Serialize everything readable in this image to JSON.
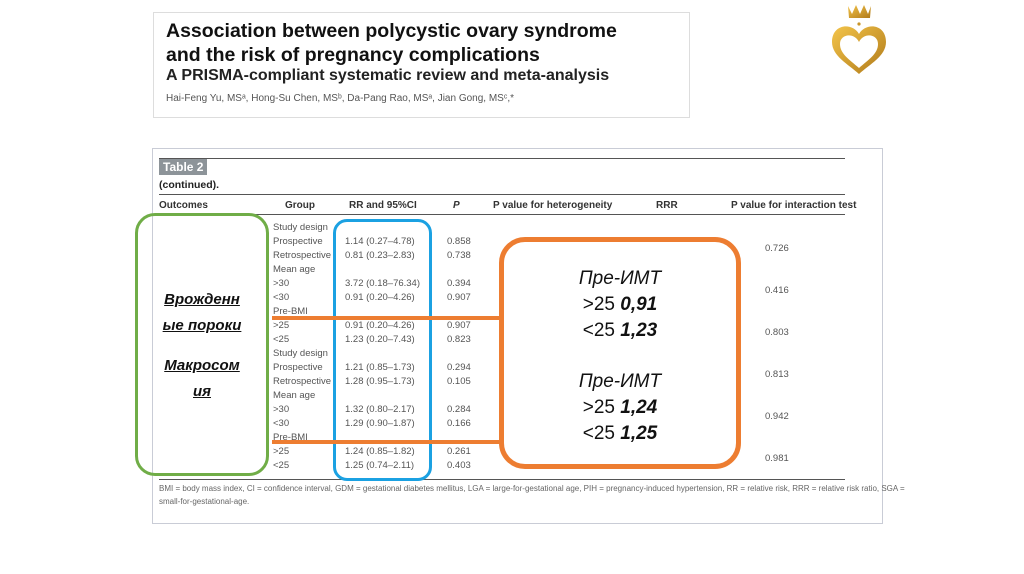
{
  "header": {
    "title_line1": "Association between polycystic ovary syndrome",
    "title_line2": "and the risk of pregnancy complications",
    "subtitle": "A PRISMA-compliant systematic review and meta-analysis",
    "authors": "Hai-Feng Yu, MSᵃ, Hong-Su Chen, MSᵇ, Da-Pang Rao, MSᵃ, Jian Gong, MSᶜ,*"
  },
  "logo": {
    "icon": "crown-heart-logo",
    "color": "#d4a02a"
  },
  "table": {
    "badge": "Table 2",
    "caption": "(continued).",
    "columns": [
      "Outcomes",
      "Group",
      "RR and 95%CI",
      "P",
      "P value for heterogeneity",
      "RRR",
      "P value for interaction test"
    ],
    "rows": [
      {
        "group": "Study design",
        "rr": "",
        "p": ""
      },
      {
        "group": "Prospective",
        "rr": "1.14 (0.27–4.78)",
        "p": "0.858"
      },
      {
        "group": "Retrospective",
        "rr": "0.81 (0.23–2.83)",
        "p": "0.738"
      },
      {
        "group": "Mean age",
        "rr": "",
        "p": ""
      },
      {
        "group": ">30",
        "rr": "3.72 (0.18–76.34)",
        "p": "0.394"
      },
      {
        "group": "<30",
        "rr": "0.91 (0.20–4.26)",
        "p": "0.907"
      },
      {
        "group": "Pre-BMI",
        "rr": "",
        "p": ""
      },
      {
        "group": ">25",
        "rr": "0.91 (0.20–4.26)",
        "p": "0.907"
      },
      {
        "group": "<25",
        "rr": "1.23 (0.20–7.43)",
        "p": "0.823"
      },
      {
        "group": "Study design",
        "rr": "",
        "p": ""
      },
      {
        "group": "Prospective",
        "rr": "1.21 (0.85–1.73)",
        "p": "0.294"
      },
      {
        "group": "Retrospective",
        "rr": "1.28 (0.95–1.73)",
        "p": "0.105"
      },
      {
        "group": "Mean age",
        "rr": "",
        "p": ""
      },
      {
        "group": ">30",
        "rr": "1.32 (0.80–2.17)",
        "p": "0.284"
      },
      {
        "group": "<30",
        "rr": "1.29 (0.90–1.87)",
        "p": "0.166"
      },
      {
        "group": "Pre-BMI",
        "rr": "",
        "p": ""
      },
      {
        "group": ">25",
        "rr": "1.24 (0.85–1.82)",
        "p": "0.261"
      },
      {
        "group": "<25",
        "rr": "1.25 (0.74–2.11)",
        "p": "0.403"
      }
    ],
    "interaction_p": [
      "0.726",
      "0.416",
      "0.803",
      "0.813",
      "0.942",
      "0.981"
    ],
    "footnote_line1": "BMI = body mass index, CI = confidence interval, GDM = gestational diabetes mellitus, LGA = large-for-gestational age, PIH = pregnancy-induced hypertension, RR = relative risk, RRR = relative risk ratio, SGA =",
    "footnote_line2": "small-for-gestational-age."
  },
  "annotations": {
    "outcome1_line1": "Врожденн",
    "outcome1_line2": "ые пороки",
    "outcome2_line1": "Макросом",
    "outcome2_line2": "ия",
    "block1": {
      "label": "Пре-ИМТ",
      "gt": ">25",
      "gt_value": "0,91",
      "lt": "<25",
      "lt_value": "1,23"
    },
    "block2": {
      "label": "Пре-ИМТ",
      "gt": ">25",
      "gt_value": "1,24",
      "lt": "<25",
      "lt_value": "1,25"
    },
    "colors": {
      "green": "#70ad47",
      "blue": "#1ba1e2",
      "orange": "#ed7d31"
    }
  }
}
